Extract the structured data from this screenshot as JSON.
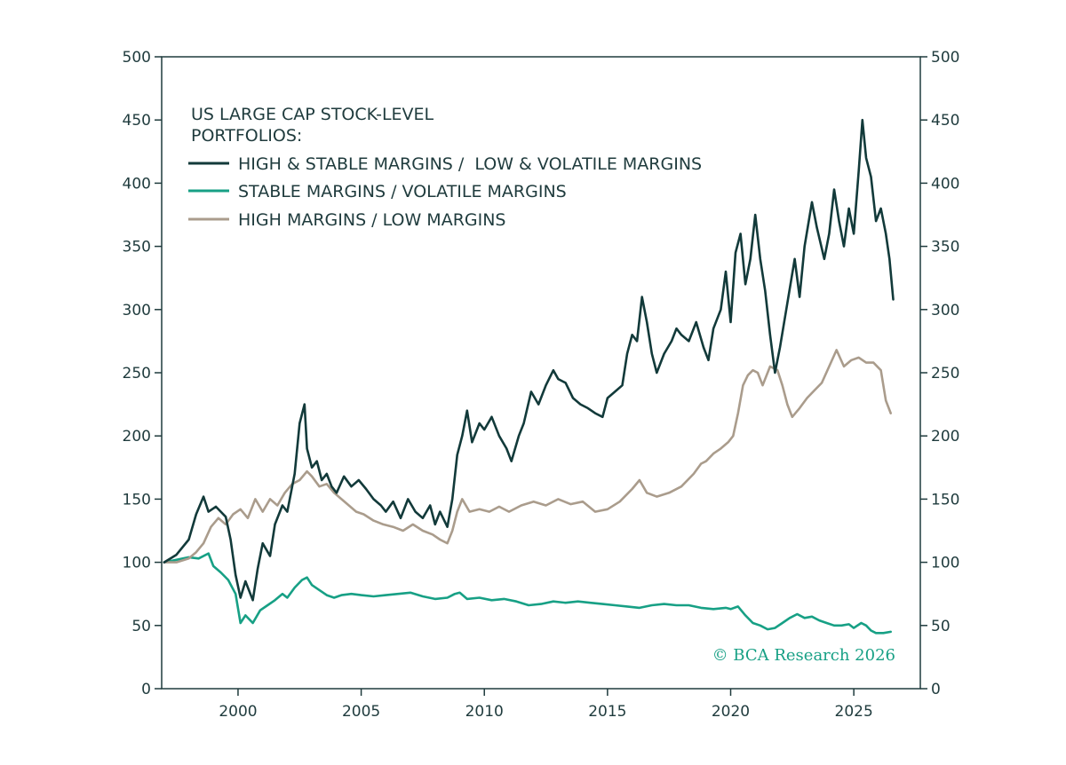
{
  "chart_data": {
    "type": "line",
    "title": "US LARGE CAP STOCK-LEVEL PORTFOLIOS:",
    "title_lines": [
      "US LARGE CAP STOCK-LEVEL",
      "PORTFOLIOS:"
    ],
    "xlabel": "",
    "ylabel": "",
    "xlim": [
      1996.9,
      2027.7
    ],
    "ylim": [
      0,
      500
    ],
    "x_ticks": [
      2000,
      2005,
      2010,
      2015,
      2020,
      2025
    ],
    "x_tick_labels": [
      "2000",
      "2005",
      "2010",
      "2015",
      "2020",
      "2025"
    ],
    "y_ticks": [
      0,
      50,
      100,
      150,
      200,
      250,
      300,
      350,
      400,
      450,
      500
    ],
    "y_tick_labels": [
      "0",
      "50",
      "100",
      "150",
      "200",
      "250",
      "300",
      "350",
      "400",
      "450",
      "500"
    ],
    "secondary_y_axis": true,
    "grid": false,
    "legend_position": "top-left",
    "credit": "© BCA Research 2026",
    "colors": {
      "axis": "#1f3b3d",
      "credit": "#17a085"
    },
    "series": [
      {
        "name": "HIGH & STABLE MARGINS /  LOW & VOLATILE MARGINS",
        "color": "#123a3a",
        "points": [
          [
            1997.0,
            100
          ],
          [
            1997.5,
            106
          ],
          [
            1998.0,
            118
          ],
          [
            1998.3,
            138
          ],
          [
            1998.6,
            152
          ],
          [
            1998.8,
            140
          ],
          [
            1999.1,
            144
          ],
          [
            1999.5,
            136
          ],
          [
            1999.7,
            118
          ],
          [
            1999.9,
            90
          ],
          [
            2000.1,
            72
          ],
          [
            2000.3,
            85
          ],
          [
            2000.6,
            70
          ],
          [
            2000.8,
            95
          ],
          [
            2001.0,
            115
          ],
          [
            2001.3,
            105
          ],
          [
            2001.5,
            130
          ],
          [
            2001.8,
            145
          ],
          [
            2002.0,
            140
          ],
          [
            2002.3,
            170
          ],
          [
            2002.5,
            210
          ],
          [
            2002.7,
            225
          ],
          [
            2002.8,
            190
          ],
          [
            2003.0,
            175
          ],
          [
            2003.2,
            180
          ],
          [
            2003.4,
            165
          ],
          [
            2003.6,
            170
          ],
          [
            2003.8,
            160
          ],
          [
            2004.0,
            155
          ],
          [
            2004.3,
            168
          ],
          [
            2004.6,
            160
          ],
          [
            2004.9,
            165
          ],
          [
            2005.2,
            158
          ],
          [
            2005.5,
            150
          ],
          [
            2005.8,
            145
          ],
          [
            2006.0,
            140
          ],
          [
            2006.3,
            148
          ],
          [
            2006.6,
            135
          ],
          [
            2006.9,
            150
          ],
          [
            2007.2,
            140
          ],
          [
            2007.5,
            135
          ],
          [
            2007.8,
            145
          ],
          [
            2008.0,
            130
          ],
          [
            2008.2,
            140
          ],
          [
            2008.5,
            128
          ],
          [
            2008.7,
            150
          ],
          [
            2008.9,
            185
          ],
          [
            2009.1,
            200
          ],
          [
            2009.3,
            220
          ],
          [
            2009.5,
            195
          ],
          [
            2009.8,
            210
          ],
          [
            2010.0,
            205
          ],
          [
            2010.3,
            215
          ],
          [
            2010.6,
            200
          ],
          [
            2010.9,
            190
          ],
          [
            2011.1,
            180
          ],
          [
            2011.4,
            200
          ],
          [
            2011.6,
            210
          ],
          [
            2011.9,
            235
          ],
          [
            2012.2,
            225
          ],
          [
            2012.5,
            240
          ],
          [
            2012.8,
            252
          ],
          [
            2013.0,
            245
          ],
          [
            2013.3,
            242
          ],
          [
            2013.6,
            230
          ],
          [
            2013.9,
            225
          ],
          [
            2014.2,
            222
          ],
          [
            2014.5,
            218
          ],
          [
            2014.8,
            215
          ],
          [
            2015.0,
            230
          ],
          [
            2015.3,
            235
          ],
          [
            2015.6,
            240
          ],
          [
            2015.8,
            265
          ],
          [
            2016.0,
            280
          ],
          [
            2016.2,
            275
          ],
          [
            2016.4,
            310
          ],
          [
            2016.6,
            290
          ],
          [
            2016.8,
            265
          ],
          [
            2017.0,
            250
          ],
          [
            2017.3,
            265
          ],
          [
            2017.6,
            275
          ],
          [
            2017.8,
            285
          ],
          [
            2018.0,
            280
          ],
          [
            2018.3,
            275
          ],
          [
            2018.6,
            290
          ],
          [
            2018.9,
            270
          ],
          [
            2019.1,
            260
          ],
          [
            2019.3,
            285
          ],
          [
            2019.6,
            300
          ],
          [
            2019.8,
            330
          ],
          [
            2020.0,
            290
          ],
          [
            2020.2,
            345
          ],
          [
            2020.4,
            360
          ],
          [
            2020.6,
            320
          ],
          [
            2020.8,
            340
          ],
          [
            2021.0,
            375
          ],
          [
            2021.2,
            340
          ],
          [
            2021.4,
            315
          ],
          [
            2021.6,
            280
          ],
          [
            2021.8,
            250
          ],
          [
            2022.0,
            270
          ],
          [
            2022.3,
            305
          ],
          [
            2022.6,
            340
          ],
          [
            2022.8,
            310
          ],
          [
            2023.0,
            350
          ],
          [
            2023.3,
            385
          ],
          [
            2023.5,
            365
          ],
          [
            2023.8,
            340
          ],
          [
            2024.0,
            360
          ],
          [
            2024.2,
            395
          ],
          [
            2024.4,
            370
          ],
          [
            2024.6,
            350
          ],
          [
            2024.8,
            380
          ],
          [
            2025.0,
            360
          ],
          [
            2025.2,
            410
          ],
          [
            2025.35,
            450
          ],
          [
            2025.5,
            420
          ],
          [
            2025.7,
            405
          ],
          [
            2025.9,
            370
          ],
          [
            2026.1,
            380
          ],
          [
            2026.3,
            360
          ],
          [
            2026.45,
            340
          ],
          [
            2026.6,
            308
          ]
        ]
      },
      {
        "name": "STABLE MARGINS / VOLATILE MARGINS",
        "color": "#17a085",
        "points": [
          [
            1997.0,
            100
          ],
          [
            1997.5,
            102
          ],
          [
            1998.0,
            104
          ],
          [
            1998.4,
            103
          ],
          [
            1998.8,
            107
          ],
          [
            1999.0,
            97
          ],
          [
            1999.3,
            92
          ],
          [
            1999.6,
            86
          ],
          [
            1999.9,
            75
          ],
          [
            2000.1,
            52
          ],
          [
            2000.3,
            58
          ],
          [
            2000.6,
            52
          ],
          [
            2000.9,
            62
          ],
          [
            2001.2,
            66
          ],
          [
            2001.5,
            70
          ],
          [
            2001.8,
            75
          ],
          [
            2002.0,
            72
          ],
          [
            2002.3,
            80
          ],
          [
            2002.6,
            86
          ],
          [
            2002.8,
            88
          ],
          [
            2003.0,
            82
          ],
          [
            2003.3,
            78
          ],
          [
            2003.6,
            74
          ],
          [
            2003.9,
            72
          ],
          [
            2004.2,
            74
          ],
          [
            2004.6,
            75
          ],
          [
            2005.0,
            74
          ],
          [
            2005.5,
            73
          ],
          [
            2006.0,
            74
          ],
          [
            2006.5,
            75
          ],
          [
            2007.0,
            76
          ],
          [
            2007.5,
            73
          ],
          [
            2008.0,
            71
          ],
          [
            2008.5,
            72
          ],
          [
            2008.8,
            75
          ],
          [
            2009.0,
            76
          ],
          [
            2009.3,
            71
          ],
          [
            2009.8,
            72
          ],
          [
            2010.3,
            70
          ],
          [
            2010.8,
            71
          ],
          [
            2011.3,
            69
          ],
          [
            2011.8,
            66
          ],
          [
            2012.3,
            67
          ],
          [
            2012.8,
            69
          ],
          [
            2013.3,
            68
          ],
          [
            2013.8,
            69
          ],
          [
            2014.3,
            68
          ],
          [
            2014.8,
            67
          ],
          [
            2015.3,
            66
          ],
          [
            2015.8,
            65
          ],
          [
            2016.3,
            64
          ],
          [
            2016.8,
            66
          ],
          [
            2017.3,
            67
          ],
          [
            2017.8,
            66
          ],
          [
            2018.3,
            66
          ],
          [
            2018.8,
            64
          ],
          [
            2019.3,
            63
          ],
          [
            2019.8,
            64
          ],
          [
            2020.0,
            63
          ],
          [
            2020.3,
            65
          ],
          [
            2020.6,
            58
          ],
          [
            2020.9,
            52
          ],
          [
            2021.2,
            50
          ],
          [
            2021.5,
            47
          ],
          [
            2021.8,
            48
          ],
          [
            2022.1,
            52
          ],
          [
            2022.4,
            56
          ],
          [
            2022.7,
            59
          ],
          [
            2023.0,
            56
          ],
          [
            2023.3,
            57
          ],
          [
            2023.6,
            54
          ],
          [
            2023.9,
            52
          ],
          [
            2024.2,
            50
          ],
          [
            2024.5,
            50
          ],
          [
            2024.8,
            51
          ],
          [
            2025.0,
            48
          ],
          [
            2025.3,
            52
          ],
          [
            2025.5,
            50
          ],
          [
            2025.7,
            46
          ],
          [
            2025.9,
            44
          ],
          [
            2026.2,
            44
          ],
          [
            2026.5,
            45
          ]
        ]
      },
      {
        "name": "HIGH MARGINS / LOW MARGINS",
        "color": "#aa9c8c",
        "points": [
          [
            1997.0,
            100
          ],
          [
            1997.5,
            100
          ],
          [
            1998.0,
            103
          ],
          [
            1998.3,
            108
          ],
          [
            1998.6,
            115
          ],
          [
            1998.9,
            128
          ],
          [
            1999.2,
            135
          ],
          [
            1999.5,
            130
          ],
          [
            1999.8,
            138
          ],
          [
            2000.1,
            142
          ],
          [
            2000.4,
            135
          ],
          [
            2000.7,
            150
          ],
          [
            2001.0,
            140
          ],
          [
            2001.3,
            150
          ],
          [
            2001.6,
            145
          ],
          [
            2001.9,
            155
          ],
          [
            2002.2,
            162
          ],
          [
            2002.5,
            165
          ],
          [
            2002.8,
            172
          ],
          [
            2003.0,
            168
          ],
          [
            2003.3,
            160
          ],
          [
            2003.6,
            162
          ],
          [
            2003.9,
            155
          ],
          [
            2004.2,
            150
          ],
          [
            2004.5,
            145
          ],
          [
            2004.8,
            140
          ],
          [
            2005.1,
            138
          ],
          [
            2005.5,
            133
          ],
          [
            2005.9,
            130
          ],
          [
            2006.3,
            128
          ],
          [
            2006.7,
            125
          ],
          [
            2007.1,
            130
          ],
          [
            2007.5,
            125
          ],
          [
            2007.9,
            122
          ],
          [
            2008.2,
            118
          ],
          [
            2008.5,
            115
          ],
          [
            2008.7,
            125
          ],
          [
            2008.9,
            140
          ],
          [
            2009.1,
            150
          ],
          [
            2009.4,
            140
          ],
          [
            2009.8,
            142
          ],
          [
            2010.2,
            140
          ],
          [
            2010.6,
            144
          ],
          [
            2011.0,
            140
          ],
          [
            2011.5,
            145
          ],
          [
            2012.0,
            148
          ],
          [
            2012.5,
            145
          ],
          [
            2013.0,
            150
          ],
          [
            2013.5,
            146
          ],
          [
            2014.0,
            148
          ],
          [
            2014.5,
            140
          ],
          [
            2015.0,
            142
          ],
          [
            2015.5,
            148
          ],
          [
            2016.0,
            158
          ],
          [
            2016.3,
            165
          ],
          [
            2016.6,
            155
          ],
          [
            2017.0,
            152
          ],
          [
            2017.5,
            155
          ],
          [
            2018.0,
            160
          ],
          [
            2018.5,
            170
          ],
          [
            2018.8,
            178
          ],
          [
            2019.0,
            180
          ],
          [
            2019.3,
            186
          ],
          [
            2019.6,
            190
          ],
          [
            2019.9,
            195
          ],
          [
            2020.1,
            200
          ],
          [
            2020.3,
            218
          ],
          [
            2020.5,
            240
          ],
          [
            2020.7,
            248
          ],
          [
            2020.9,
            252
          ],
          [
            2021.1,
            250
          ],
          [
            2021.3,
            240
          ],
          [
            2021.6,
            255
          ],
          [
            2021.9,
            252
          ],
          [
            2022.1,
            240
          ],
          [
            2022.3,
            225
          ],
          [
            2022.5,
            215
          ],
          [
            2022.8,
            222
          ],
          [
            2023.1,
            230
          ],
          [
            2023.4,
            236
          ],
          [
            2023.7,
            242
          ],
          [
            2024.0,
            255
          ],
          [
            2024.3,
            268
          ],
          [
            2024.6,
            255
          ],
          [
            2024.9,
            260
          ],
          [
            2025.2,
            262
          ],
          [
            2025.5,
            258
          ],
          [
            2025.8,
            258
          ],
          [
            2026.1,
            252
          ],
          [
            2026.3,
            228
          ],
          [
            2026.5,
            218
          ]
        ]
      }
    ]
  }
}
